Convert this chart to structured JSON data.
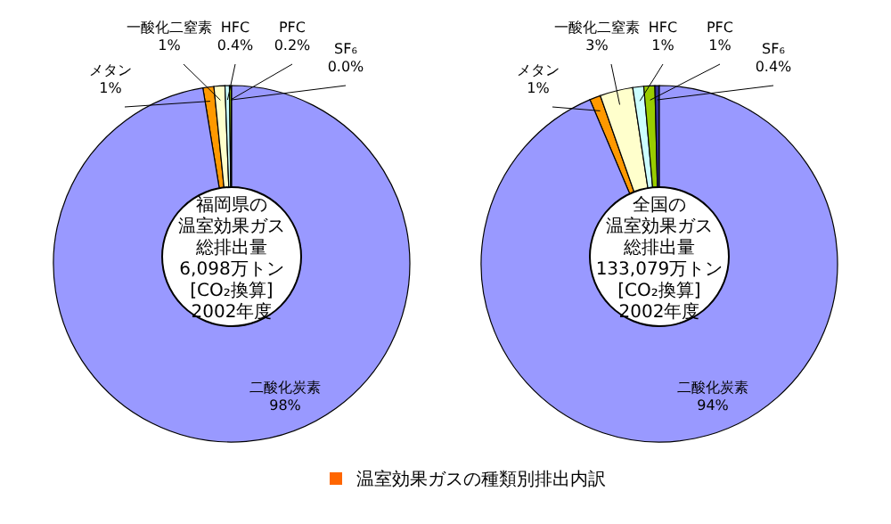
{
  "chart_data": [
    {
      "type": "pie",
      "categories": [
        "メタン",
        "一酸化二窒素",
        "HFC",
        "PFC",
        "SF₆",
        "二酸化炭素"
      ],
      "values": [
        1,
        1,
        0.4,
        0.2,
        0.0,
        98
      ],
      "value_labels": [
        "1%",
        "1%",
        "0.4%",
        "0.2%",
        "0.0%",
        "98%"
      ],
      "colors": [
        "#ff9900",
        "#ffffcc",
        "#ccffff",
        "#99cc00",
        "#333399",
        "#9999ff"
      ],
      "annotations": [
        "福岡県の",
        "温室効果ガス",
        "総排出量",
        "6,098万トン",
        "[CO₂換算]",
        "2002年度"
      ]
    },
    {
      "type": "pie",
      "categories": [
        "メタン",
        "一酸化二窒素",
        "HFC",
        "PFC",
        "SF₆",
        "二酸化炭素"
      ],
      "values": [
        1,
        3,
        1,
        1,
        0.4,
        94
      ],
      "value_labels": [
        "1%",
        "3%",
        "1%",
        "1%",
        "0.4%",
        "94%"
      ],
      "colors": [
        "#ff9900",
        "#ffffcc",
        "#ccffff",
        "#99cc00",
        "#333399",
        "#9999ff"
      ],
      "annotations": [
        "全国の",
        "温室効果ガス",
        "総排出量",
        "133,079万トン",
        "[CO₂換算]",
        "2002年度"
      ],
      "subtitle": "温室効果ガスの種類別排出内訳"
    }
  ]
}
